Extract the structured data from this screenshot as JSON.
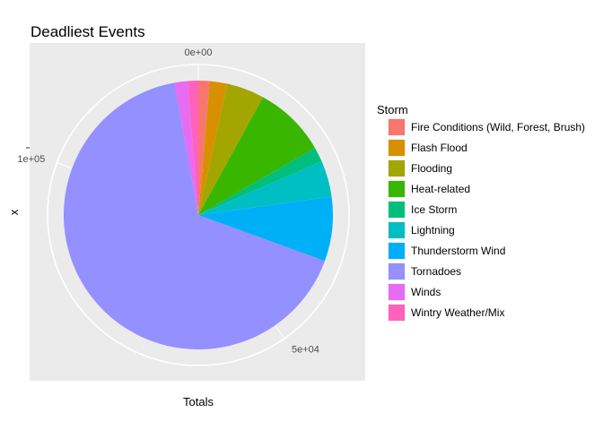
{
  "chart_data": {
    "type": "pie",
    "title": "Deadliest Events",
    "xlabel": "Totals",
    "ylabel": "x",
    "theta_ticks": [
      {
        "value": 0,
        "label": "0e+00"
      },
      {
        "value": 50000,
        "label": "5e+04"
      },
      {
        "value": 100000,
        "label": "1e+05"
      }
    ],
    "theta_max": 124000,
    "legend": {
      "title": "Storm",
      "position": "right"
    },
    "grid": true,
    "series": [
      {
        "name": "Fire Conditions (Wild, Forest, Brush)",
        "value": 1700,
        "color": "#F8766D"
      },
      {
        "name": "Flash Flood",
        "value": 2600,
        "color": "#D89000"
      },
      {
        "name": "Flooding",
        "value": 5600,
        "color": "#A3A500"
      },
      {
        "name": "Heat-related",
        "value": 10800,
        "color": "#39B600"
      },
      {
        "name": "Ice Storm",
        "value": 2200,
        "color": "#00BF7D"
      },
      {
        "name": "Lightning",
        "value": 5400,
        "color": "#00BFC4"
      },
      {
        "name": "Thunderstorm Wind",
        "value": 9600,
        "color": "#00B0F6"
      },
      {
        "name": "Tornadoes",
        "value": 82600,
        "color": "#9590FF"
      },
      {
        "name": "Winds",
        "value": 1900,
        "color": "#E76BF3"
      },
      {
        "name": "Wintry Weather/Mix",
        "value": 1600,
        "color": "#FF62BC"
      }
    ]
  },
  "colors": {
    "panel": "#EBEBEB",
    "grid": "#FFFFFF",
    "pie_edge": "#FFFFFF"
  }
}
